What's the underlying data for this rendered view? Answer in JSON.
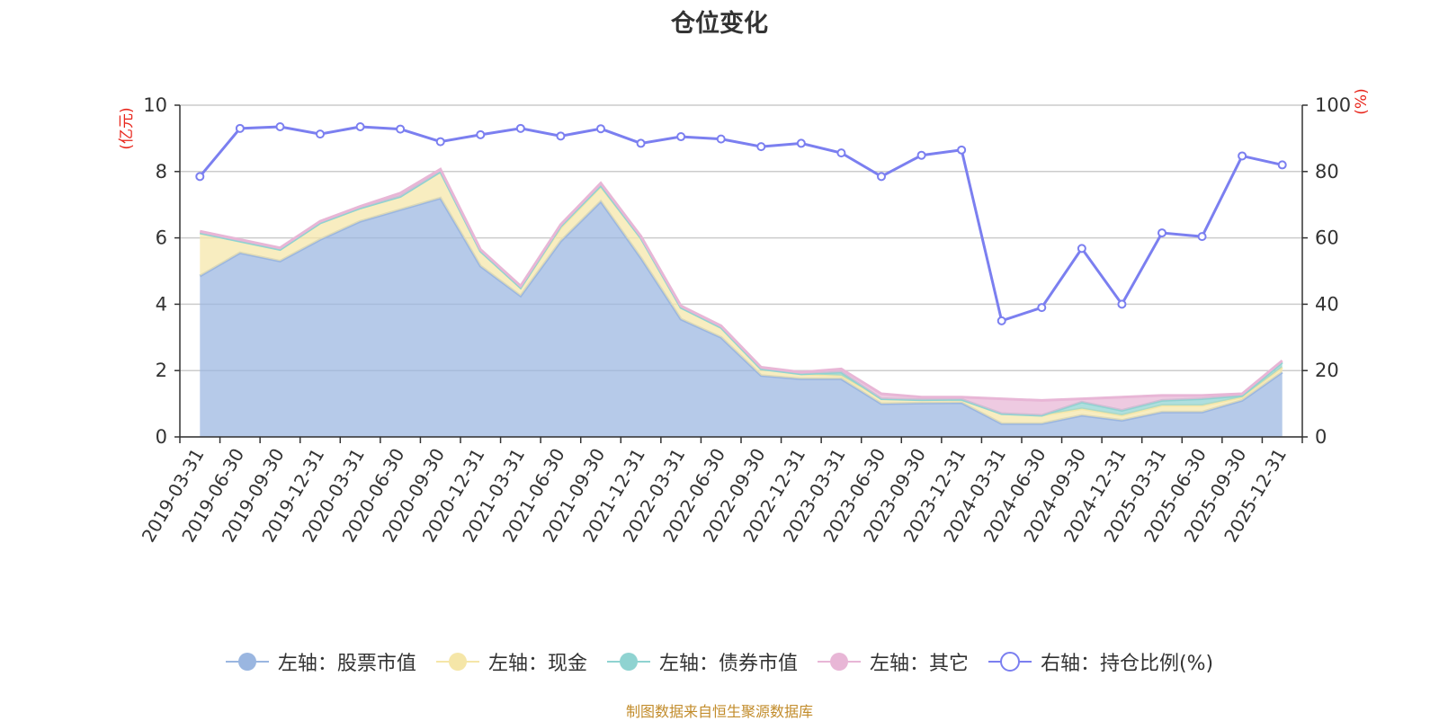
{
  "chart_data": {
    "type": "area",
    "title": "仓位变化",
    "left_axis_label": "(亿元)",
    "right_axis_label": "(%)",
    "left_ylim": [
      0,
      10
    ],
    "left_yticks": [
      0,
      2,
      4,
      6,
      8,
      10
    ],
    "right_ylim": [
      0,
      100
    ],
    "right_yticks": [
      0,
      20,
      40,
      60,
      80,
      100
    ],
    "grid": true,
    "legend_position": "bottom",
    "categories": [
      "2019-03-31",
      "2019-06-30",
      "2019-09-30",
      "2019-12-31",
      "2020-03-31",
      "2020-06-30",
      "2020-09-30",
      "2020-12-31",
      "2021-03-31",
      "2021-06-30",
      "2021-09-30",
      "2021-12-31",
      "2022-03-31",
      "2022-06-30",
      "2022-09-30",
      "2022-12-31",
      "2023-03-31",
      "2023-06-30",
      "2023-09-30",
      "2023-12-31",
      "2024-03-31",
      "2024-06-30",
      "2024-09-30",
      "2024-12-31",
      "2025-03-31",
      "2025-06-30",
      "2025-09-30",
      "2025-12-31"
    ],
    "series": [
      {
        "name": "左轴：股票市值",
        "axis": "left",
        "kind": "stacked-area",
        "color": "#9ab6e0",
        "values": [
          4.85,
          5.55,
          5.3,
          5.95,
          6.5,
          6.85,
          7.2,
          5.15,
          4.25,
          5.9,
          7.1,
          5.4,
          3.55,
          3.0,
          1.85,
          1.75,
          1.75,
          1.0,
          1.02,
          1.03,
          0.4,
          0.4,
          0.65,
          0.5,
          0.75,
          0.75,
          1.1,
          1.95
        ]
      },
      {
        "name": "左轴：现金",
        "axis": "left",
        "kind": "stacked-area",
        "color": "#f5e6a8",
        "values": [
          1.3,
          0.35,
          0.35,
          0.5,
          0.4,
          0.4,
          0.8,
          0.45,
          0.25,
          0.4,
          0.45,
          0.6,
          0.35,
          0.3,
          0.2,
          0.15,
          0.1,
          0.15,
          0.1,
          0.1,
          0.3,
          0.25,
          0.2,
          0.15,
          0.2,
          0.2,
          0.1,
          0.15
        ]
      },
      {
        "name": "左轴：债券市值",
        "axis": "left",
        "kind": "stacked-area",
        "color": "#8fd3d1",
        "values": [
          0,
          0,
          0,
          0,
          0,
          0,
          0,
          0,
          0,
          0.05,
          0.03,
          0,
          0,
          0,
          0,
          0,
          0.1,
          0,
          0,
          0,
          0,
          0,
          0.2,
          0.15,
          0.15,
          0.2,
          0.05,
          0.15
        ]
      },
      {
        "name": "左轴：其它",
        "axis": "left",
        "kind": "stacked-area",
        "color": "#e8b6d6",
        "values": [
          0.05,
          0.05,
          0.05,
          0.05,
          0.05,
          0.1,
          0.07,
          0.05,
          0.05,
          0.05,
          0.07,
          0.05,
          0.05,
          0.05,
          0.05,
          0.05,
          0.1,
          0.15,
          0.08,
          0.07,
          0.45,
          0.45,
          0.1,
          0.4,
          0.15,
          0.1,
          0.05,
          0.05
        ]
      },
      {
        "name": "右轴：持仓比例(%)",
        "axis": "right",
        "kind": "line",
        "color": "#7b7ff0",
        "values": [
          78.5,
          93,
          93.5,
          91.3,
          93.5,
          92.8,
          89,
          91.1,
          93,
          90.7,
          92.9,
          88.5,
          90.5,
          89.8,
          87.5,
          88.5,
          85.6,
          78.5,
          84.9,
          86.5,
          35,
          39,
          56.8,
          40,
          61.5,
          60.4,
          84.7,
          82
        ]
      }
    ],
    "source": "制图数据来自恒生聚源数据库"
  }
}
